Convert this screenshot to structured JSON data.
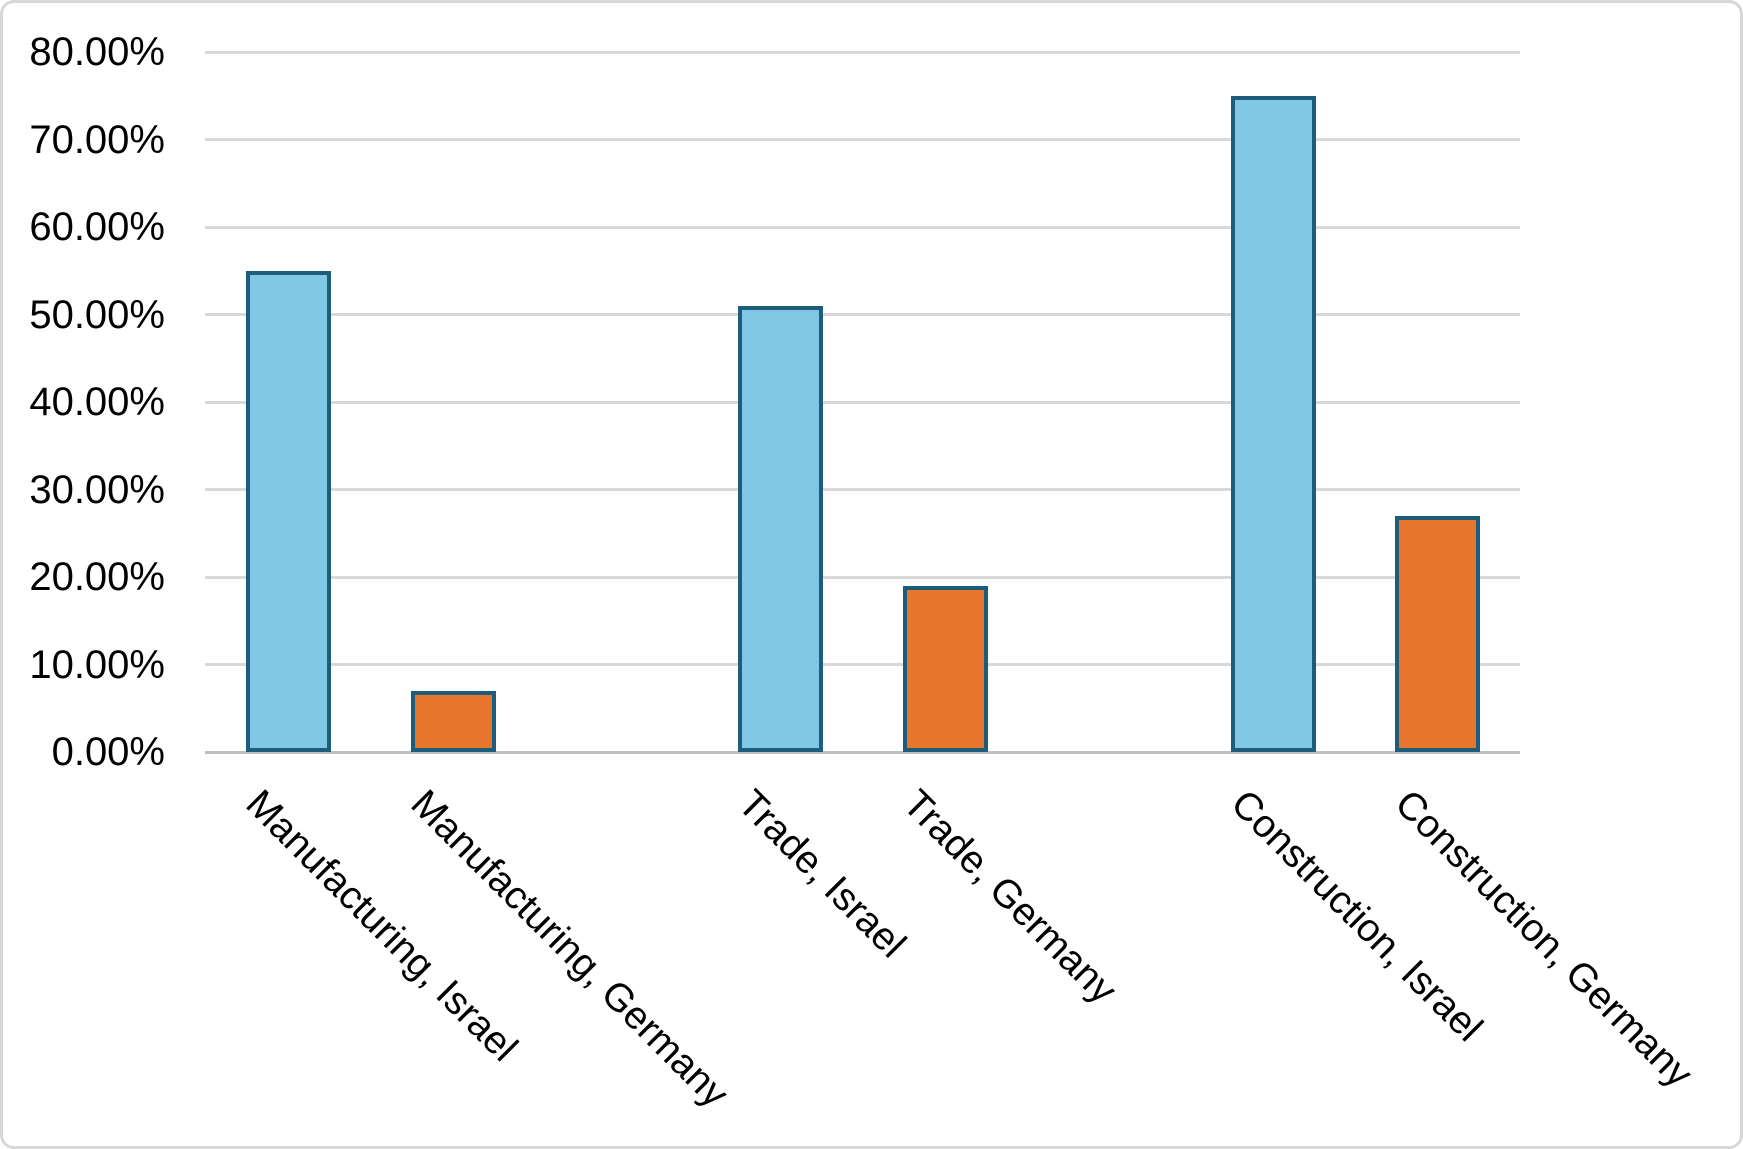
{
  "chart_data": {
    "type": "bar",
    "title": "",
    "xlabel": "",
    "ylabel": "",
    "categories": [
      "Manufacturing, Israel",
      "Manufacturing, Germany",
      "Trade, Israel",
      "Trade, Germany",
      "Construction, Israel",
      "Construction, Germany"
    ],
    "values": [
      55,
      7,
      51,
      19,
      75,
      27
    ],
    "value_unit": "percent",
    "bar_fill_colors": [
      "#7fc7e4",
      "#e8752c",
      "#7fc7e4",
      "#e8752c",
      "#7fc7e4",
      "#e8752c"
    ],
    "bar_border_color": "#1e5c7c",
    "ylim": [
      0,
      80
    ],
    "ytick_step": 10,
    "yticks": [
      "80.00%",
      "70.00%",
      "60.00%",
      "50.00%",
      "40.00%",
      "30.00%",
      "20.00%",
      "10.00%",
      "0.00%"
    ],
    "grid": true,
    "gridline_color": "#d9d9d9",
    "axis_line_color": "#bfbfbf",
    "legend": "none",
    "x_label_rotation_deg": 45,
    "groups": [
      {
        "label": "Manufacturing",
        "members": [
          0,
          1
        ]
      },
      {
        "label": "Trade",
        "members": [
          2,
          3
        ]
      },
      {
        "label": "Construction",
        "members": [
          4,
          5
        ]
      }
    ]
  }
}
